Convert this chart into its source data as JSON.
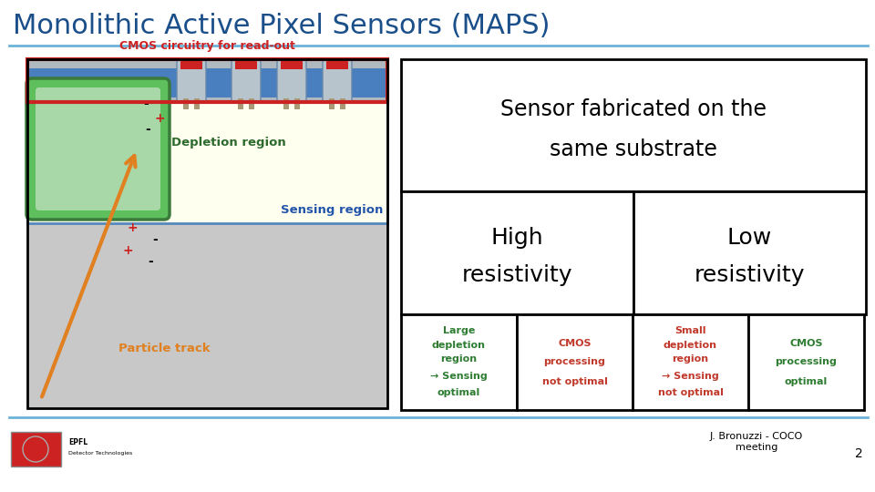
{
  "title": "Monolithic Active Pixel Sensors (MAPS)",
  "title_color": "#1b4f8a",
  "title_fontsize": 22,
  "bg_color": "#ffffff",
  "separator_color": "#6db3d8",
  "cmos_label": "CMOS circuitry for read-out",
  "depletion_label": "Depletion region",
  "sensing_label": "Sensing region",
  "particle_label": "Particle track",
  "sensor_fabricated_1": "Sensor fabricated on the",
  "sensor_fabricated_2": "same substrate",
  "high_res_1": "High",
  "high_res_2": "resistivity",
  "low_res_1": "Low",
  "low_res_2": "resistivity",
  "cell1_l1": "Large",
  "cell1_l2": "depletion",
  "cell1_l3": "region",
  "cell1_l4": "→ Sensing",
  "cell1_l5": "optimal",
  "cell1_color": "#2e7d32",
  "cell2_l1": "CMOS",
  "cell2_l2": "processing",
  "cell2_l3": "not optimal",
  "cell2_color": "#c0392b",
  "cell3_l1": "Small",
  "cell3_l2": "depletion",
  "cell3_l3": "region",
  "cell3_l4": "→ Sensing",
  "cell3_l5": "not optimal",
  "cell3_color": "#c0392b",
  "cell4_l1": "CMOS",
  "cell4_l2": "processing",
  "cell4_l3": "optimal",
  "cell4_color": "#2e7d32",
  "footer_text": "J. Bronuzzi - COCO\nmeeting",
  "footer_num": "2",
  "gray_bg": "#c8c8c8",
  "light_yellow": "#fffff0",
  "light_blue_sense": "#d5e8f5",
  "blue_cmos": "#5588bb",
  "green_dep_outer": "#3a7a3a",
  "green_dep_fill": "#5dc05d",
  "green_dep_inner": "#a8d8a8",
  "orange_arrow": "#e08020",
  "cmos_label_color": "#cc2222",
  "depletion_label_color": "#2d6a2d",
  "sensing_label_color": "#2255aa",
  "particle_label_color": "#e08020"
}
